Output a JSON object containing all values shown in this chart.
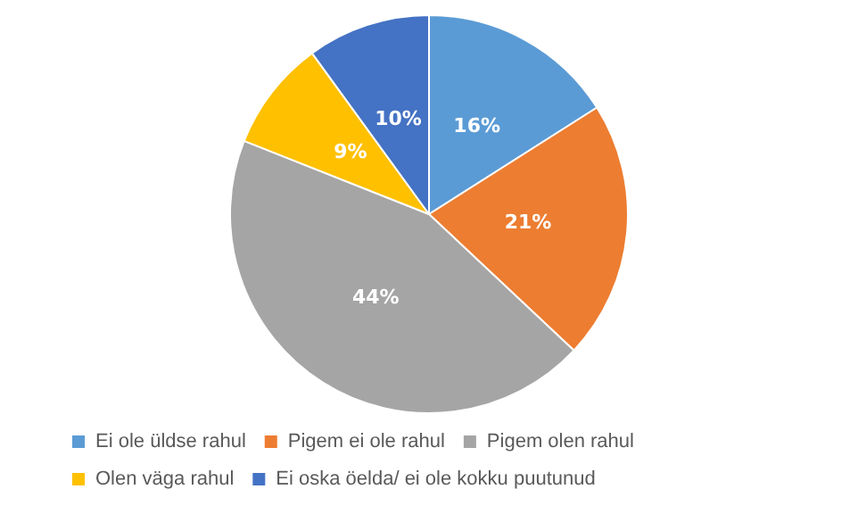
{
  "chart_data": {
    "type": "pie",
    "categories": [
      "Ei ole üldse rahul",
      "Pigem ei ole rahul",
      "Pigem olen rahul",
      "Olen väga rahul",
      "Ei oska öelda/ ei ole kokku puutunud"
    ],
    "values": [
      16,
      21,
      44,
      9,
      10
    ],
    "colors": [
      "#5b9bd5",
      "#ed7d31",
      "#a5a5a5",
      "#ffc000",
      "#4472c4"
    ],
    "value_labels": [
      "16%",
      "21%",
      "44%",
      "9%",
      "10%"
    ],
    "legend": "bottom"
  }
}
